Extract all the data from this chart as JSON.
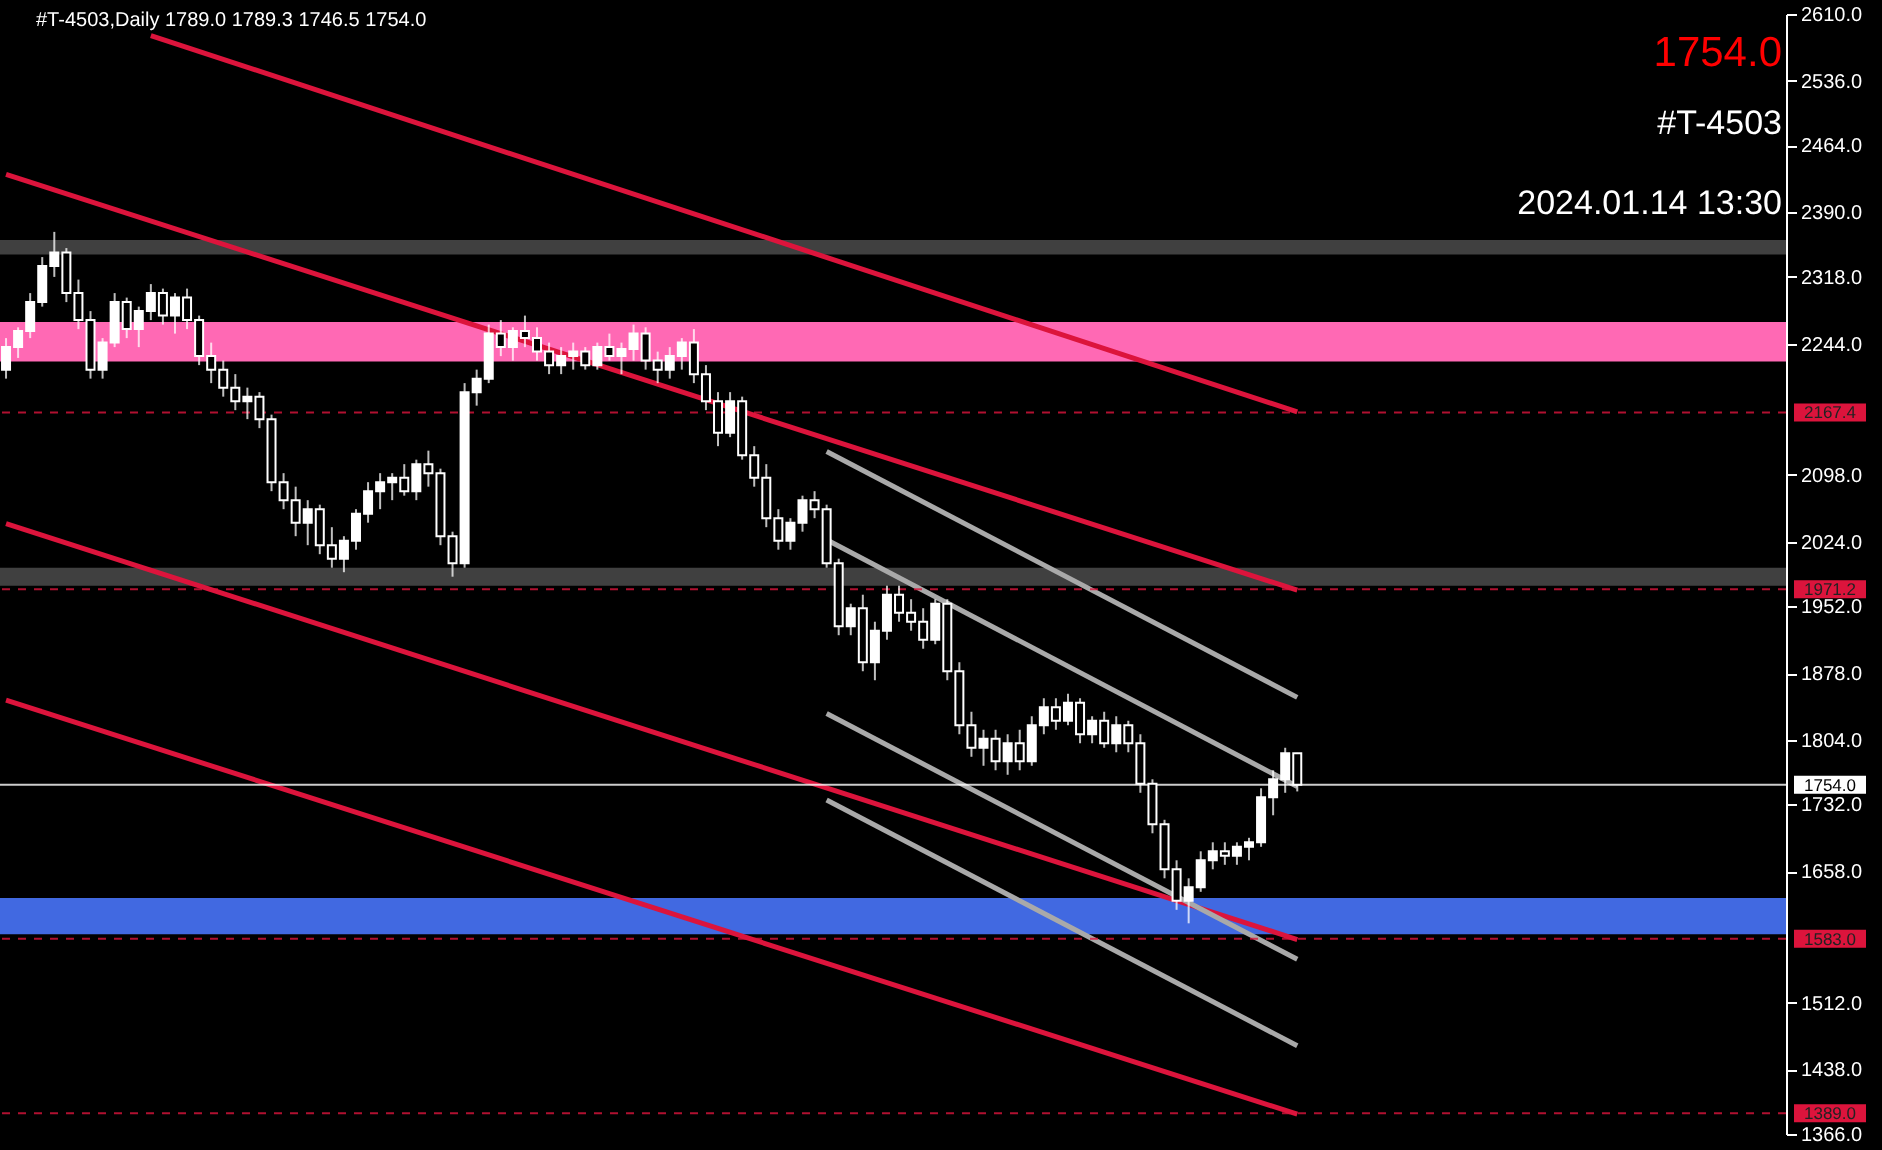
{
  "chart_data": {
    "type": "candlestick",
    "title": "#T-4503,Daily  1789.0 1789.3 1746.5 1754.0",
    "annotations": [
      "1754.0",
      "#T-4503",
      "2024.01.14 13:30"
    ],
    "color": "#ffffff",
    "categories": [
      null,
      null,
      null,
      null,
      null,
      null,
      null,
      null,
      null,
      null,
      null,
      null,
      null,
      null,
      null,
      null,
      null,
      null,
      null,
      null,
      null,
      null,
      null,
      null,
      null,
      null,
      null,
      null,
      null,
      null,
      null,
      null,
      null,
      null,
      null,
      null,
      null,
      null,
      null,
      null,
      null,
      null,
      null,
      null,
      null,
      null,
      null,
      null,
      null,
      null,
      null,
      null,
      null,
      null,
      null,
      null,
      null,
      null,
      null,
      null,
      null,
      null,
      null,
      null,
      null,
      null,
      null,
      null,
      null,
      null,
      null,
      null,
      null,
      null,
      null,
      null,
      null,
      null,
      null,
      null,
      null,
      null,
      null,
      null,
      null,
      null,
      null,
      null,
      null,
      null,
      null,
      null,
      null,
      null,
      null,
      null,
      null,
      null,
      null,
      null,
      null,
      null,
      null,
      null,
      null,
      null,
      null,
      null,
      null,
      null,
      null,
      null,
      null,
      null,
      null,
      null,
      null,
      null,
      null,
      null,
      null,
      null,
      null,
      null,
      null,
      null,
      null,
      null,
      null,
      null,
      null,
      null,
      null,
      null,
      null,
      null,
      null,
      null,
      null,
      null,
      null,
      null,
      null,
      null,
      null,
      null,
      null,
      null
    ],
    "ohlc": [
      [
        2215,
        2250,
        2205,
        2240
      ],
      [
        2240,
        2262,
        2228,
        2258
      ],
      [
        2258,
        2300,
        2250,
        2290
      ],
      [
        2290,
        2340,
        2285,
        2330
      ],
      [
        2330,
        2368,
        2318,
        2345
      ],
      [
        2345,
        2350,
        2290,
        2300
      ],
      [
        2300,
        2315,
        2260,
        2270
      ],
      [
        2270,
        2280,
        2205,
        2215
      ],
      [
        2215,
        2250,
        2205,
        2245
      ],
      [
        2245,
        2300,
        2240,
        2290
      ],
      [
        2290,
        2295,
        2250,
        2260
      ],
      [
        2260,
        2285,
        2240,
        2280
      ],
      [
        2280,
        2310,
        2270,
        2300
      ],
      [
        2300,
        2305,
        2265,
        2275
      ],
      [
        2275,
        2300,
        2255,
        2295
      ],
      [
        2295,
        2305,
        2260,
        2270
      ],
      [
        2270,
        2275,
        2220,
        2230
      ],
      [
        2230,
        2245,
        2200,
        2215
      ],
      [
        2215,
        2225,
        2185,
        2195
      ],
      [
        2195,
        2210,
        2170,
        2180
      ],
      [
        2180,
        2195,
        2160,
        2185
      ],
      [
        2185,
        2190,
        2150,
        2160
      ],
      [
        2160,
        2165,
        2080,
        2090
      ],
      [
        2090,
        2100,
        2060,
        2070
      ],
      [
        2070,
        2085,
        2030,
        2045
      ],
      [
        2045,
        2070,
        2020,
        2060
      ],
      [
        2060,
        2065,
        2010,
        2020
      ],
      [
        2020,
        2040,
        1995,
        2005
      ],
      [
        2005,
        2030,
        1990,
        2025
      ],
      [
        2025,
        2060,
        2015,
        2055
      ],
      [
        2055,
        2090,
        2045,
        2080
      ],
      [
        2080,
        2100,
        2060,
        2090
      ],
      [
        2090,
        2100,
        2070,
        2095
      ],
      [
        2095,
        2110,
        2075,
        2080
      ],
      [
        2080,
        2115,
        2070,
        2110
      ],
      [
        2110,
        2125,
        2085,
        2100
      ],
      [
        2100,
        2105,
        2020,
        2030
      ],
      [
        2030,
        2035,
        1985,
        2000
      ],
      [
        2000,
        2200,
        1995,
        2190
      ],
      [
        2190,
        2215,
        2175,
        2205
      ],
      [
        2205,
        2265,
        2200,
        2255
      ],
      [
        2255,
        2270,
        2230,
        2240
      ],
      [
        2240,
        2262,
        2225,
        2258
      ],
      [
        2258,
        2275,
        2240,
        2250
      ],
      [
        2250,
        2262,
        2225,
        2235
      ],
      [
        2235,
        2245,
        2210,
        2220
      ],
      [
        2220,
        2240,
        2210,
        2230
      ],
      [
        2230,
        2245,
        2215,
        2235
      ],
      [
        2235,
        2240,
        2215,
        2220
      ],
      [
        2220,
        2245,
        2215,
        2240
      ],
      [
        2240,
        2255,
        2225,
        2230
      ],
      [
        2230,
        2245,
        2210,
        2238
      ],
      [
        2238,
        2265,
        2225,
        2255
      ],
      [
        2255,
        2262,
        2215,
        2225
      ],
      [
        2225,
        2235,
        2200,
        2215
      ],
      [
        2215,
        2240,
        2205,
        2230
      ],
      [
        2230,
        2250,
        2215,
        2245
      ],
      [
        2245,
        2260,
        2200,
        2210
      ],
      [
        2210,
        2220,
        2170,
        2180
      ],
      [
        2180,
        2190,
        2130,
        2145
      ],
      [
        2145,
        2190,
        2140,
        2180
      ],
      [
        2180,
        2185,
        2115,
        2120
      ],
      [
        2120,
        2130,
        2085,
        2095
      ],
      [
        2095,
        2110,
        2040,
        2050
      ],
      [
        2050,
        2060,
        2015,
        2025
      ],
      [
        2025,
        2050,
        2015,
        2045
      ],
      [
        2045,
        2075,
        2035,
        2070
      ],
      [
        2070,
        2080,
        2050,
        2060
      ],
      [
        2060,
        2065,
        1995,
        2000
      ],
      [
        2000,
        2005,
        1920,
        1930
      ],
      [
        1930,
        1955,
        1920,
        1950
      ],
      [
        1950,
        1965,
        1880,
        1890
      ],
      [
        1890,
        1935,
        1870,
        1925
      ],
      [
        1925,
        1975,
        1915,
        1965
      ],
      [
        1965,
        1975,
        1935,
        1945
      ],
      [
        1945,
        1960,
        1925,
        1935
      ],
      [
        1935,
        1950,
        1905,
        1915
      ],
      [
        1915,
        1960,
        1910,
        1955
      ],
      [
        1955,
        1960,
        1870,
        1880
      ],
      [
        1880,
        1890,
        1810,
        1820
      ],
      [
        1820,
        1835,
        1785,
        1795
      ],
      [
        1795,
        1815,
        1775,
        1805
      ],
      [
        1805,
        1815,
        1770,
        1780
      ],
      [
        1780,
        1810,
        1765,
        1800
      ],
      [
        1800,
        1815,
        1770,
        1780
      ],
      [
        1780,
        1830,
        1775,
        1820
      ],
      [
        1820,
        1850,
        1810,
        1840
      ],
      [
        1840,
        1850,
        1815,
        1825
      ],
      [
        1825,
        1855,
        1820,
        1845
      ],
      [
        1845,
        1850,
        1800,
        1810
      ],
      [
        1810,
        1830,
        1800,
        1825
      ],
      [
        1825,
        1835,
        1795,
        1800
      ],
      [
        1800,
        1830,
        1790,
        1820
      ],
      [
        1820,
        1825,
        1790,
        1800
      ],
      [
        1800,
        1810,
        1745,
        1755
      ],
      [
        1755,
        1760,
        1700,
        1710
      ],
      [
        1710,
        1715,
        1650,
        1660
      ],
      [
        1660,
        1670,
        1615,
        1625
      ],
      [
        1625,
        1650,
        1600,
        1640
      ],
      [
        1640,
        1680,
        1635,
        1670
      ],
      [
        1670,
        1690,
        1660,
        1680
      ],
      [
        1680,
        1690,
        1665,
        1675
      ],
      [
        1675,
        1690,
        1665,
        1685
      ],
      [
        1685,
        1695,
        1670,
        1690
      ],
      [
        1690,
        1750,
        1685,
        1740
      ],
      [
        1740,
        1770,
        1720,
        1760
      ],
      [
        1760,
        1795,
        1745,
        1789
      ],
      [
        1789,
        1789.3,
        1746.5,
        1754
      ],
      null,
      null,
      null,
      null,
      null,
      null,
      null,
      null,
      null,
      null,
      null,
      null,
      null,
      null,
      null,
      null,
      null,
      null,
      null,
      null,
      null,
      null,
      null,
      null,
      null,
      null,
      null,
      null,
      null,
      null,
      null,
      null,
      null,
      null,
      null,
      null,
      null,
      null,
      null,
      null
    ],
    "series": [
      {
        "type": "line",
        "color": "#dc143c",
        "values": [
          null,
          null,
          null,
          null,
          null,
          null,
          null,
          null,
          null,
          null,
          null,
          null,
          2586,
          null,
          null,
          null,
          null,
          null,
          null,
          null,
          null,
          null,
          null,
          null,
          null,
          null,
          null,
          null,
          null,
          null,
          null,
          null,
          null,
          null,
          null,
          null,
          null,
          null,
          null,
          null,
          null,
          null,
          null,
          null,
          null,
          null,
          null,
          null,
          null,
          null,
          null,
          null,
          null,
          null,
          null,
          null,
          null,
          null,
          null,
          null,
          null,
          null,
          null,
          null,
          null,
          null,
          null,
          null,
          null,
          null,
          null,
          null,
          null,
          null,
          null,
          null,
          null,
          null,
          null,
          null,
          null,
          null,
          null,
          null,
          null,
          null,
          null,
          null,
          null,
          null,
          null,
          null,
          null,
          null,
          null,
          null,
          null,
          null,
          null,
          null,
          null,
          null,
          null,
          null,
          null,
          null,
          null,
          2168,
          null,
          null,
          null,
          null,
          null,
          null,
          null,
          null,
          null,
          null,
          null,
          null,
          null,
          null,
          null,
          null,
          null,
          null,
          null,
          null,
          null,
          null,
          null,
          null,
          null,
          null,
          null,
          null,
          null,
          null,
          null,
          null,
          null,
          null,
          null,
          null,
          null,
          null,
          null,
          null
        ]
      },
      {
        "type": "line",
        "color": "#dc143c",
        "values": [
          2432,
          null,
          null,
          null,
          null,
          null,
          null,
          null,
          null,
          null,
          null,
          null,
          null,
          null,
          null,
          null,
          null,
          null,
          null,
          null,
          null,
          null,
          null,
          null,
          null,
          null,
          null,
          null,
          null,
          null,
          null,
          null,
          null,
          null,
          null,
          null,
          null,
          null,
          null,
          null,
          null,
          null,
          null,
          null,
          null,
          null,
          null,
          null,
          null,
          null,
          null,
          null,
          null,
          null,
          null,
          null,
          null,
          null,
          null,
          null,
          null,
          null,
          null,
          null,
          null,
          null,
          null,
          null,
          null,
          null,
          null,
          null,
          null,
          null,
          null,
          null,
          null,
          null,
          null,
          null,
          null,
          null,
          null,
          null,
          null,
          null,
          null,
          null,
          null,
          null,
          null,
          null,
          null,
          null,
          null,
          null,
          null,
          null,
          null,
          null,
          null,
          null,
          null,
          null,
          null,
          null,
          null,
          1970,
          null,
          null,
          null,
          null,
          null,
          null,
          null,
          null,
          null,
          null,
          null,
          null,
          null,
          null,
          null,
          null,
          null,
          null,
          null,
          null,
          null,
          null,
          null,
          null,
          null,
          null,
          null,
          null,
          null,
          null,
          null,
          null,
          null,
          null,
          null,
          null,
          null,
          null,
          null,
          null
        ]
      },
      {
        "type": "line",
        "color": "#dc143c",
        "values": [
          2044,
          null,
          null,
          null,
          null,
          null,
          null,
          null,
          null,
          null,
          null,
          null,
          null,
          null,
          null,
          null,
          null,
          null,
          null,
          null,
          null,
          null,
          null,
          null,
          null,
          null,
          null,
          null,
          null,
          null,
          null,
          null,
          null,
          null,
          null,
          null,
          null,
          null,
          null,
          null,
          null,
          null,
          null,
          null,
          null,
          null,
          null,
          null,
          null,
          null,
          null,
          null,
          null,
          null,
          null,
          null,
          null,
          null,
          null,
          null,
          null,
          null,
          null,
          null,
          null,
          null,
          null,
          null,
          null,
          null,
          null,
          null,
          null,
          null,
          null,
          null,
          null,
          null,
          null,
          null,
          null,
          null,
          null,
          null,
          null,
          null,
          null,
          null,
          null,
          null,
          null,
          null,
          null,
          null,
          null,
          null,
          null,
          null,
          null,
          null,
          null,
          null,
          null,
          null,
          null,
          null,
          null,
          1582,
          null,
          null,
          null,
          null,
          null,
          null,
          null,
          null,
          null,
          null,
          null,
          null,
          null,
          null,
          null,
          null,
          null,
          null,
          null,
          null,
          null,
          null,
          null,
          null,
          null,
          null,
          null,
          null,
          null,
          null,
          null,
          null,
          null,
          null,
          null,
          null,
          null,
          null,
          null,
          null
        ]
      },
      {
        "type": "line",
        "color": "#dc143c",
        "values": [
          1848,
          null,
          null,
          null,
          null,
          null,
          null,
          null,
          null,
          null,
          null,
          null,
          null,
          null,
          null,
          null,
          null,
          null,
          null,
          null,
          null,
          null,
          null,
          null,
          null,
          null,
          null,
          null,
          null,
          null,
          null,
          null,
          null,
          null,
          null,
          null,
          null,
          null,
          null,
          null,
          null,
          null,
          null,
          null,
          null,
          null,
          null,
          null,
          null,
          null,
          null,
          null,
          null,
          null,
          null,
          null,
          null,
          null,
          null,
          null,
          null,
          null,
          null,
          null,
          null,
          null,
          null,
          null,
          null,
          null,
          null,
          null,
          null,
          null,
          null,
          null,
          null,
          null,
          null,
          null,
          null,
          null,
          null,
          null,
          null,
          null,
          null,
          null,
          null,
          null,
          null,
          null,
          null,
          null,
          null,
          null,
          null,
          null,
          null,
          null,
          null,
          null,
          null,
          null,
          null,
          null,
          null,
          1388,
          null,
          null,
          null,
          null,
          null,
          null,
          null,
          null,
          null,
          null,
          null,
          null,
          null,
          null,
          null,
          null,
          null,
          null,
          null,
          null,
          null,
          null,
          null,
          null,
          null,
          null,
          null,
          null,
          null,
          null,
          null,
          null,
          null,
          null,
          null,
          null,
          null,
          null,
          null,
          null
        ]
      },
      {
        "type": "line",
        "color": "#a9a9a9",
        "values": [
          null,
          null,
          null,
          null,
          null,
          null,
          null,
          null,
          null,
          null,
          null,
          null,
          null,
          null,
          null,
          null,
          null,
          null,
          null,
          null,
          null,
          null,
          null,
          null,
          null,
          null,
          null,
          null,
          null,
          null,
          null,
          null,
          null,
          null,
          null,
          null,
          null,
          null,
          null,
          null,
          null,
          null,
          null,
          null,
          null,
          null,
          null,
          null,
          null,
          null,
          null,
          null,
          null,
          null,
          null,
          null,
          null,
          null,
          null,
          null,
          null,
          null,
          null,
          null,
          null,
          null,
          null,
          null,
          2124,
          null,
          null,
          null,
          null,
          null,
          null,
          null,
          null,
          null,
          null,
          null,
          null,
          null,
          null,
          null,
          null,
          null,
          null,
          null,
          null,
          null,
          null,
          null,
          null,
          null,
          null,
          null,
          null,
          null,
          null,
          null,
          null,
          null,
          null,
          null,
          null,
          null,
          null,
          1851,
          null,
          null,
          null,
          null,
          null,
          null,
          null,
          null,
          null,
          null,
          null,
          null,
          null,
          null,
          null,
          null,
          null,
          null,
          null,
          null,
          null,
          null,
          null,
          null,
          null,
          null,
          null,
          null,
          null,
          null,
          null,
          null,
          null,
          null,
          null,
          null,
          null,
          null,
          null,
          null
        ]
      },
      {
        "type": "line",
        "color": "#a9a9a9",
        "values": [
          null,
          null,
          null,
          null,
          null,
          null,
          null,
          null,
          null,
          null,
          null,
          null,
          null,
          null,
          null,
          null,
          null,
          null,
          null,
          null,
          null,
          null,
          null,
          null,
          null,
          null,
          null,
          null,
          null,
          null,
          null,
          null,
          null,
          null,
          null,
          null,
          null,
          null,
          null,
          null,
          null,
          null,
          null,
          null,
          null,
          null,
          null,
          null,
          null,
          null,
          null,
          null,
          null,
          null,
          null,
          null,
          null,
          null,
          null,
          null,
          null,
          null,
          null,
          null,
          null,
          null,
          null,
          null,
          2026,
          null,
          null,
          null,
          null,
          null,
          null,
          null,
          null,
          null,
          null,
          null,
          null,
          null,
          null,
          null,
          null,
          null,
          null,
          null,
          null,
          null,
          null,
          null,
          null,
          null,
          null,
          null,
          null,
          null,
          null,
          null,
          null,
          null,
          null,
          null,
          null,
          null,
          null,
          1752,
          null,
          null,
          null,
          null,
          null,
          null,
          null,
          null,
          null,
          null,
          null,
          null,
          null,
          null,
          null,
          null,
          null,
          null,
          null,
          null,
          null,
          null,
          null,
          null,
          null,
          null,
          null,
          null,
          null,
          null,
          null,
          null,
          null,
          null,
          null,
          null,
          null,
          null,
          null,
          null
        ]
      },
      {
        "type": "line",
        "color": "#a9a9a9",
        "values": [
          null,
          null,
          null,
          null,
          null,
          null,
          null,
          null,
          null,
          null,
          null,
          null,
          null,
          null,
          null,
          null,
          null,
          null,
          null,
          null,
          null,
          null,
          null,
          null,
          null,
          null,
          null,
          null,
          null,
          null,
          null,
          null,
          null,
          null,
          null,
          null,
          null,
          null,
          null,
          null,
          null,
          null,
          null,
          null,
          null,
          null,
          null,
          null,
          null,
          null,
          null,
          null,
          null,
          null,
          null,
          null,
          null,
          null,
          null,
          null,
          null,
          null,
          null,
          null,
          null,
          null,
          null,
          null,
          1833,
          null,
          null,
          null,
          null,
          null,
          null,
          null,
          null,
          null,
          null,
          null,
          null,
          null,
          null,
          null,
          null,
          null,
          null,
          null,
          null,
          null,
          null,
          null,
          null,
          null,
          null,
          null,
          null,
          null,
          null,
          null,
          null,
          null,
          null,
          null,
          null,
          null,
          null,
          1560,
          null,
          null,
          null,
          null,
          null,
          null,
          null,
          null,
          null,
          null,
          null,
          null,
          null,
          null,
          null,
          null,
          null,
          null,
          null,
          null,
          null,
          null,
          null,
          null,
          null,
          null,
          null,
          null,
          null,
          null,
          null,
          null,
          null,
          null,
          null,
          null,
          null,
          null,
          null,
          null
        ]
      },
      {
        "type": "line",
        "color": "#a9a9a9",
        "values": [
          null,
          null,
          null,
          null,
          null,
          null,
          null,
          null,
          null,
          null,
          null,
          null,
          null,
          null,
          null,
          null,
          null,
          null,
          null,
          null,
          null,
          null,
          null,
          null,
          null,
          null,
          null,
          null,
          null,
          null,
          null,
          null,
          null,
          null,
          null,
          null,
          null,
          null,
          null,
          null,
          null,
          null,
          null,
          null,
          null,
          null,
          null,
          null,
          null,
          null,
          null,
          null,
          null,
          null,
          null,
          null,
          null,
          null,
          null,
          null,
          null,
          null,
          null,
          null,
          null,
          null,
          null,
          null,
          1737,
          null,
          null,
          null,
          null,
          null,
          null,
          null,
          null,
          null,
          null,
          null,
          null,
          null,
          null,
          null,
          null,
          null,
          null,
          null,
          null,
          null,
          null,
          null,
          null,
          null,
          null,
          null,
          null,
          null,
          null,
          null,
          null,
          null,
          null,
          null,
          null,
          null,
          null,
          1464,
          null,
          null,
          null,
          null,
          null,
          null,
          null,
          null,
          null,
          null,
          null,
          null,
          null,
          null,
          null,
          null,
          null,
          null,
          null,
          null,
          null,
          null,
          null,
          null,
          null,
          null,
          null,
          null,
          null,
          null,
          null,
          null,
          null,
          null,
          null,
          null,
          null,
          null,
          null,
          null
        ]
      }
    ],
    "bands": [
      {
        "axis": "y",
        "from": 2343,
        "to": 2359,
        "color": "#404040"
      },
      {
        "axis": "y",
        "from": 2224,
        "to": 2268,
        "color": "#ff69b4"
      },
      {
        "axis": "y",
        "from": 1975,
        "to": 1995,
        "color": "#404040"
      },
      {
        "axis": "y",
        "from": 1588,
        "to": 1628,
        "color": "#4169e1"
      }
    ],
    "ref_lines": [
      {
        "axis": "y",
        "value": 2167.4,
        "label": "2167.4",
        "color": "#dc143c",
        "line_style": "dashed"
      },
      {
        "axis": "y",
        "value": 1971.2,
        "label": "1971.2",
        "color": "#dc143c",
        "line_style": "dashed"
      },
      {
        "axis": "y",
        "value": 1754.0,
        "label": "1754.0",
        "color": "#ffffff",
        "line_style": "solid"
      },
      {
        "axis": "y",
        "value": 1583.0,
        "label": "1583.0",
        "color": "#dc143c",
        "line_style": "dashed"
      },
      {
        "axis": "y",
        "value": 1389.0,
        "label": "1389.0",
        "color": "#dc143c",
        "line_style": "dashed"
      }
    ],
    "ylim": [
      1366,
      2610
    ],
    "yticks": [
      {
        "value": 1366,
        "label": "1366.0"
      },
      {
        "value": 1438,
        "label": "1438.0"
      },
      {
        "value": 1512,
        "label": "1512.0"
      },
      {
        "value": 1658,
        "label": "1658.0"
      },
      {
        "value": 1732,
        "label": "1732.0"
      },
      {
        "value": 1804,
        "label": "1804.0"
      },
      {
        "value": 1878,
        "label": "1878.0"
      },
      {
        "value": 1952,
        "label": "1952.0"
      },
      {
        "value": 2024,
        "label": "2024.0"
      },
      {
        "value": 2098,
        "label": "2098.0"
      },
      {
        "value": 2244,
        "label": "2244.0"
      },
      {
        "value": 2318,
        "label": "2318.0"
      },
      {
        "value": 2390,
        "label": "2390.0"
      },
      {
        "value": 2464,
        "label": "2464.0"
      },
      {
        "value": 2536,
        "label": "2536.0"
      },
      {
        "value": 2610,
        "label": "2610.0"
      }
    ],
    "tick_labels": "y"
  }
}
